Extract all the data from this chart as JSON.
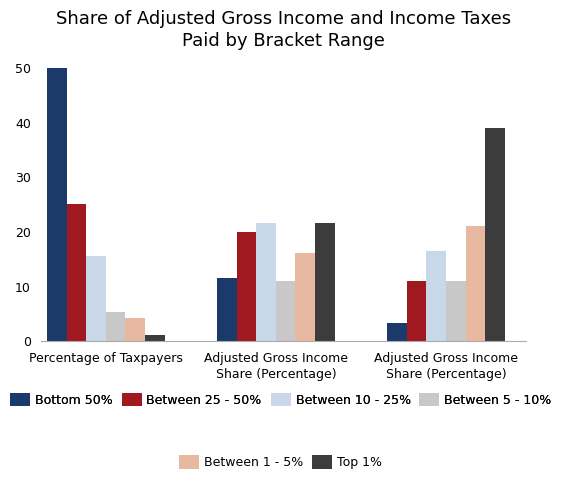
{
  "title": "Share of Adjusted Gross Income and Income Taxes\nPaid by Bracket Range",
  "groups": [
    "Percentage of Taxpayers",
    "Adjusted Gross Income\nShare (Percentage)",
    "Adjusted Gross Income\nShare (Percentage)"
  ],
  "series": [
    {
      "label": "Bottom 50%",
      "color": "#1B3A6B",
      "values": [
        50,
        11.5,
        3.3
      ]
    },
    {
      "label": "Between 25 - 50%",
      "color": "#A01820",
      "values": [
        25,
        20.0,
        11.0
      ]
    },
    {
      "label": "Between 10 - 25%",
      "color": "#C8D8E8",
      "values": [
        15.5,
        21.5,
        16.5
      ]
    },
    {
      "label": "Between 5 - 10%",
      "color": "#C8C8C8",
      "values": [
        5.2,
        11.0,
        11.0
      ]
    },
    {
      "label": "Between 1 - 5%",
      "color": "#E8B8A0",
      "values": [
        4.2,
        16.0,
        21.0
      ]
    },
    {
      "label": "Top 1%",
      "color": "#3C3C3C",
      "values": [
        1.0,
        21.5,
        39.0
      ]
    }
  ],
  "ylim": [
    0,
    52
  ],
  "yticks": [
    0,
    10,
    20,
    30,
    40,
    50
  ],
  "background_color": "#FFFFFF",
  "title_fontsize": 13,
  "legend_fontsize": 9,
  "tick_fontsize": 9,
  "bar_width": 0.115,
  "group_centers": [
    0.38,
    1.38,
    2.38
  ],
  "xlim": [
    0.0,
    2.85
  ]
}
